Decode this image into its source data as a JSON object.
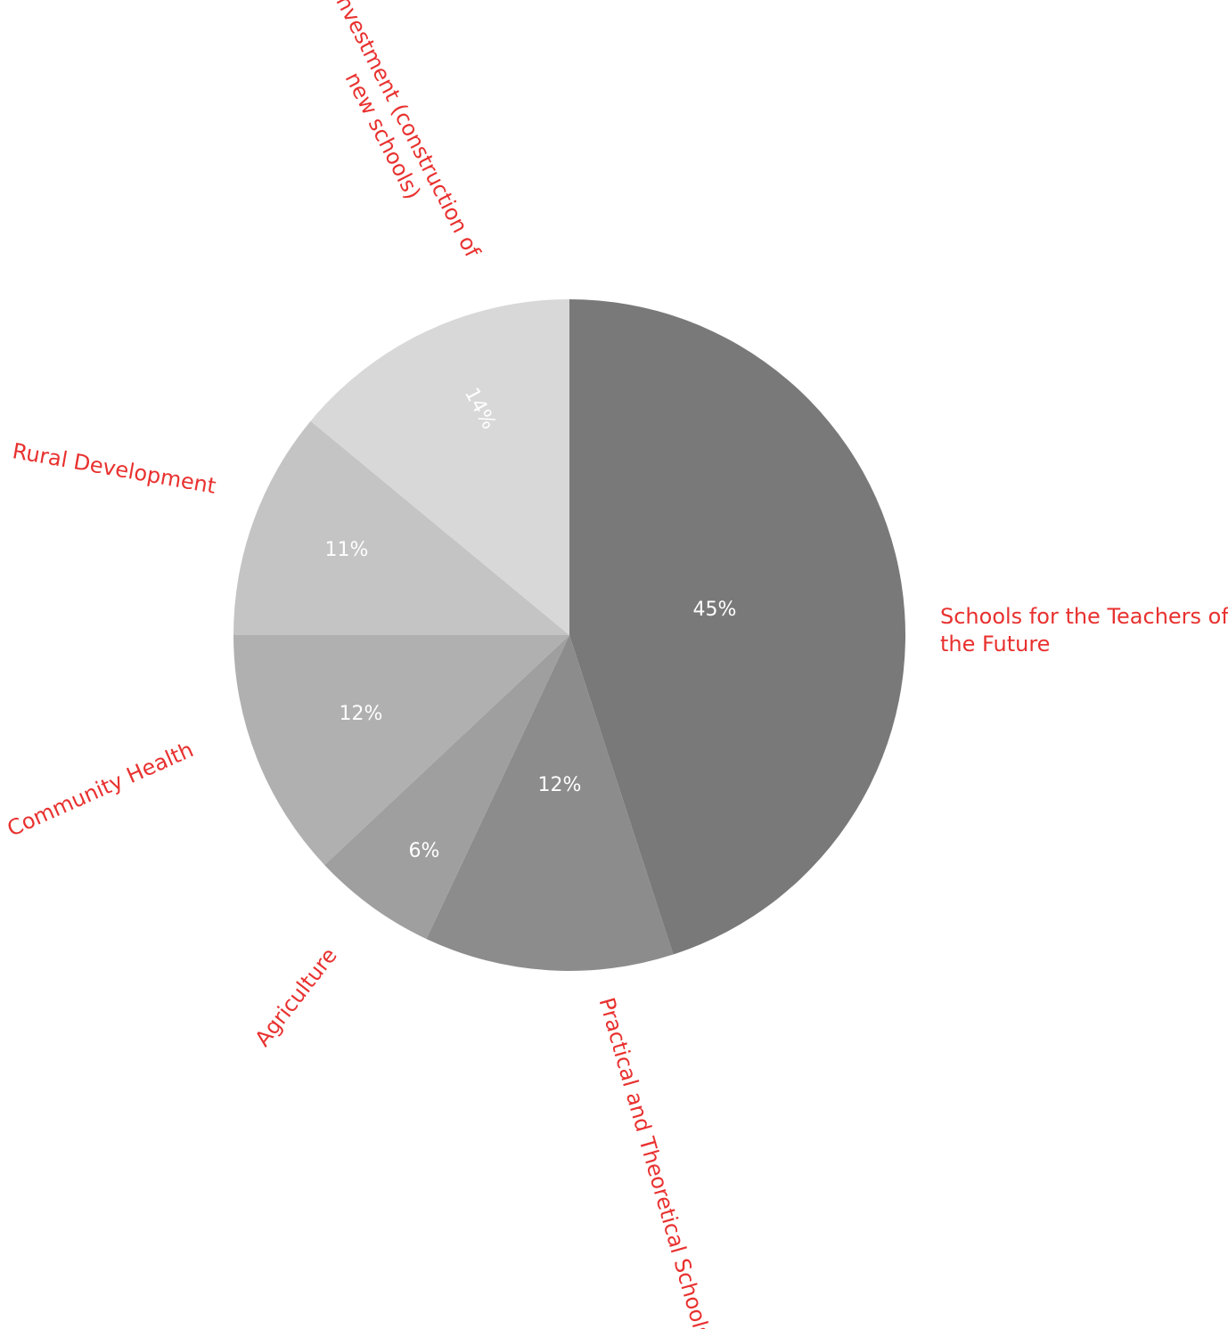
{
  "chart_data": {
    "type": "pie",
    "title": "",
    "start_angle": "12 o'clock, clockwise",
    "slices": [
      {
        "label": "Schools for the Teachers of the Future",
        "label_lines": [
          "Schools for the Teachers of",
          "the Future"
        ],
        "value": 45,
        "value_label": "45%",
        "color": "#797979"
      },
      {
        "label": "Practical and Theoretical Schools",
        "label_lines": [
          "Practical and Theoretical Schools"
        ],
        "value": 12,
        "value_label": "12%",
        "color": "#8c8c8c"
      },
      {
        "label": "Agriculture",
        "label_lines": [
          "Agriculture"
        ],
        "value": 6,
        "value_label": "6%",
        "color": "#9f9f9f"
      },
      {
        "label": "Community Health",
        "label_lines": [
          "Community Health"
        ],
        "value": 12,
        "value_label": "12%",
        "color": "#b0b0b0"
      },
      {
        "label": "Rural Development",
        "label_lines": [
          "Rural Development"
        ],
        "value": 11,
        "value_label": "11%",
        "color": "#c4c4c4"
      },
      {
        "label": "Investment (construction of new schools)",
        "label_lines": [
          "Investment (construction of",
          "new schools)"
        ],
        "value": 14,
        "value_label": "14%",
        "color": "#d8d8d8"
      }
    ],
    "value_label_color": "#ffffff",
    "category_label_color": "#e8312f",
    "legend": "none"
  }
}
